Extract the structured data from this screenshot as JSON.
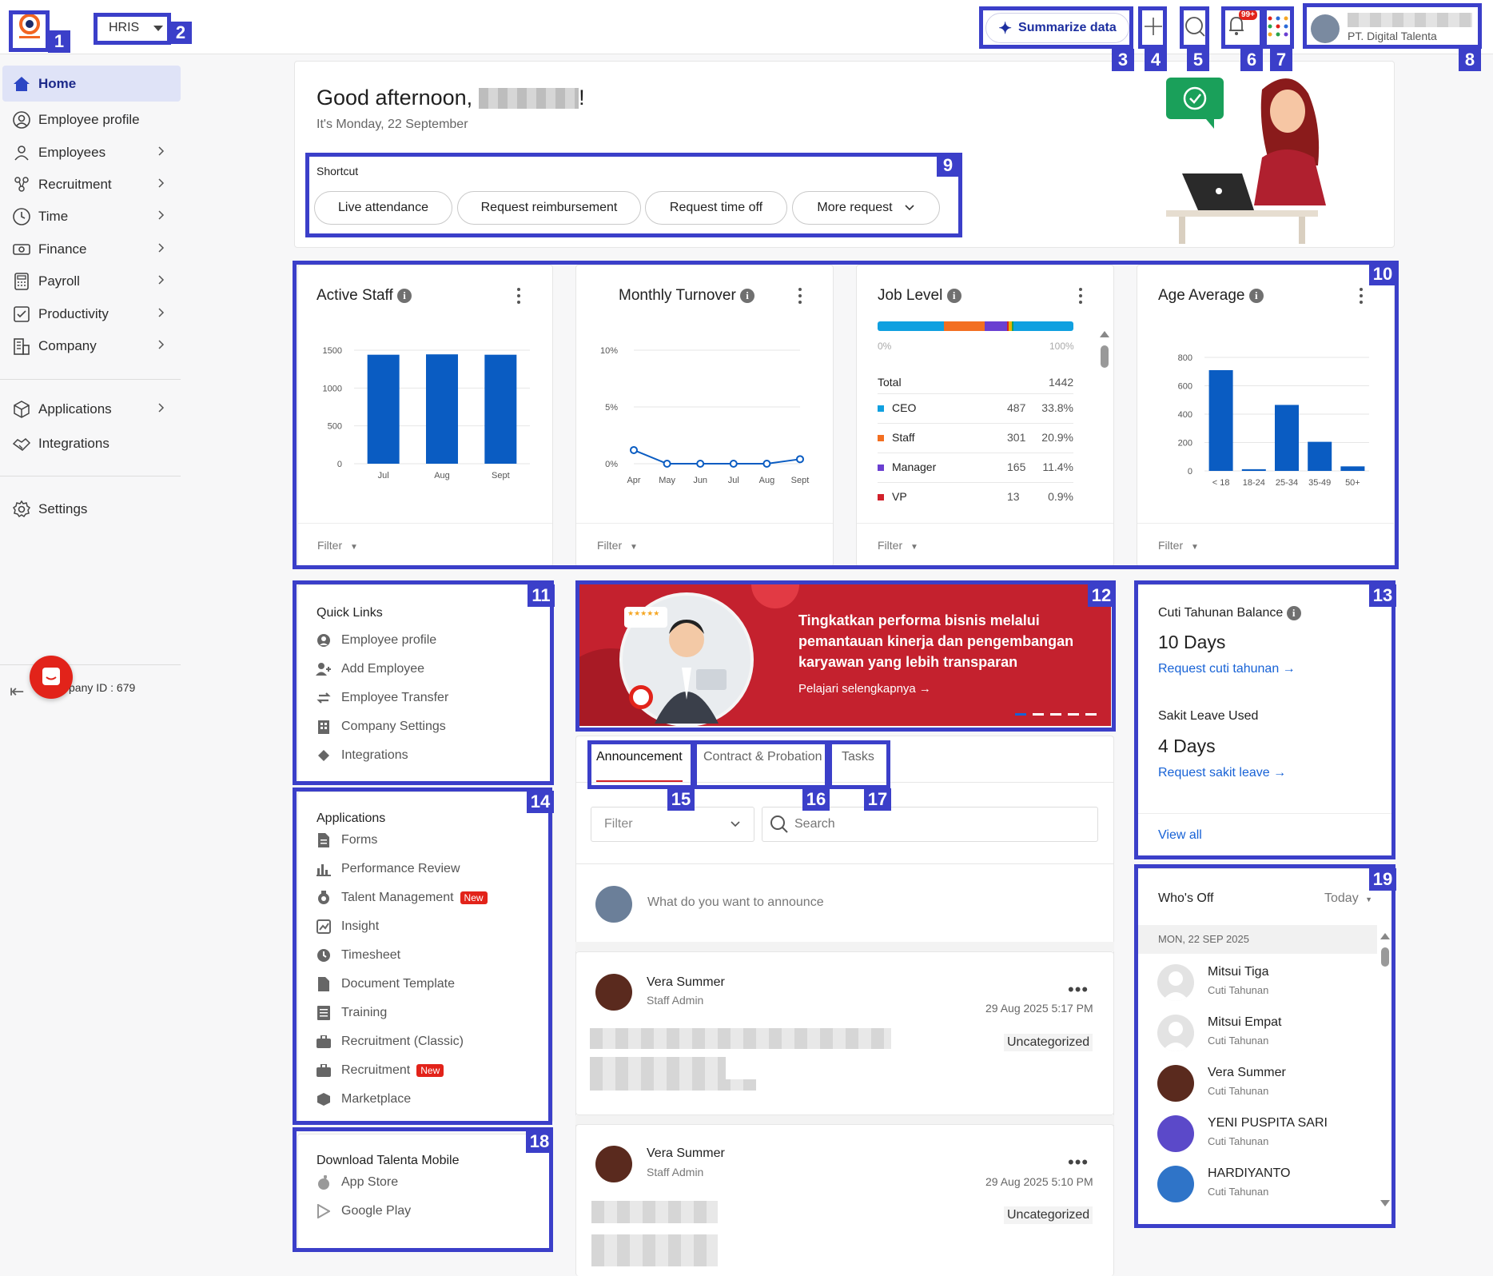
{
  "topbar": {
    "module": "HRIS",
    "summarize_label": "Summarize data",
    "notification_badge": "99+",
    "company_name": "PT. Digital Talenta"
  },
  "sidebar": {
    "items": [
      {
        "label": "Home",
        "icon": "home-icon",
        "active": true
      },
      {
        "label": "Employee profile",
        "icon": "user-circle-icon"
      },
      {
        "label": "Employees",
        "icon": "person-icon"
      },
      {
        "label": "Recruitment",
        "icon": "people-network-icon"
      },
      {
        "label": "Time",
        "icon": "clock-icon"
      },
      {
        "label": "Finance",
        "icon": "money-icon"
      },
      {
        "label": "Payroll",
        "icon": "calculator-icon"
      },
      {
        "label": "Productivity",
        "icon": "checklist-icon"
      },
      {
        "label": "Company",
        "icon": "building-icon"
      },
      {
        "label": "Applications",
        "icon": "cube-icon"
      },
      {
        "label": "Integrations",
        "icon": "handshake-icon"
      },
      {
        "label": "Settings",
        "icon": "gear-icon"
      }
    ],
    "company_id": "pany ID : 679"
  },
  "greeting": {
    "title": "Good afternoon,",
    "exclaim": "!",
    "date": "It's Monday, 22 September",
    "shortcut_title": "Shortcut",
    "shortcuts": [
      "Live attendance",
      "Request reimbursement",
      "Request time off",
      "More request"
    ]
  },
  "widgets": {
    "active_staff": {
      "title": "Active Staff",
      "filter": "Filter"
    },
    "monthly_turnover": {
      "title": "Monthly Turnover",
      "filter": "Filter"
    },
    "job_level": {
      "title": "Job Level",
      "filter": "Filter",
      "scale_min": "0%",
      "scale_max": "100%",
      "total_label": "Total",
      "total_value": "1442",
      "rows": [
        {
          "name": "CEO",
          "count": "487",
          "pct": "33.8%",
          "color": "#10a0e0"
        },
        {
          "name": "Staff",
          "count": "301",
          "pct": "20.9%",
          "color": "#f36f21"
        },
        {
          "name": "Manager",
          "count": "165",
          "pct": "11.4%",
          "color": "#6a3fd1"
        },
        {
          "name": "VP",
          "count": "13",
          "pct": "0.9%",
          "color": "#d1202a"
        }
      ]
    },
    "age_average": {
      "title": "Age Average",
      "filter": "Filter"
    }
  },
  "chart_data": [
    {
      "type": "bar",
      "title": "Active Staff",
      "categories": [
        "Jul",
        "Aug",
        "Sept"
      ],
      "values": [
        1440,
        1445,
        1440
      ],
      "ylim": [
        0,
        1500
      ],
      "yticks": [
        "1500",
        "1000",
        "500",
        "0"
      ]
    },
    {
      "type": "line",
      "title": "Monthly Turnover",
      "categories": [
        "Apr",
        "May",
        "Jun",
        "Jul",
        "Aug",
        "Sept"
      ],
      "values": [
        1.2,
        0,
        0,
        0,
        0,
        0.4
      ],
      "ylim": [
        0,
        10
      ],
      "yticks": [
        "10%",
        "5%",
        "0%"
      ]
    },
    {
      "type": "bar",
      "title": "Age Average",
      "categories": [
        "< 18",
        "18-24",
        "25-34",
        "35-49",
        "50+"
      ],
      "values": [
        710,
        12,
        465,
        205,
        32
      ],
      "ylim": [
        0,
        800
      ],
      "yticks": [
        "800",
        "600",
        "400",
        "200",
        "0"
      ]
    }
  ],
  "quick_links": {
    "title": "Quick Links",
    "items": [
      {
        "label": "Employee profile",
        "icon": "user-circle-icon"
      },
      {
        "label": "Add Employee",
        "icon": "add-person-icon"
      },
      {
        "label": "Employee Transfer",
        "icon": "transfer-icon"
      },
      {
        "label": "Company Settings",
        "icon": "building-icon"
      },
      {
        "label": "Integrations",
        "icon": "puzzle-icon"
      }
    ]
  },
  "applications": {
    "title": "Applications",
    "new_badge": "New",
    "items": [
      {
        "label": "Forms",
        "icon": "form-icon"
      },
      {
        "label": "Performance Review",
        "icon": "bar-chart-icon"
      },
      {
        "label": "Talent Management",
        "icon": "badge-icon",
        "new": true
      },
      {
        "label": "Insight",
        "icon": "insight-icon"
      },
      {
        "label": "Timesheet",
        "icon": "clock-icon"
      },
      {
        "label": "Document Template",
        "icon": "document-icon"
      },
      {
        "label": "Training",
        "icon": "list-icon"
      },
      {
        "label": "Recruitment (Classic)",
        "icon": "briefcase-icon"
      },
      {
        "label": "Recruitment",
        "icon": "briefcase-icon",
        "new": true
      },
      {
        "label": "Marketplace",
        "icon": "cube-icon"
      }
    ]
  },
  "download": {
    "title": "Download Talenta Mobile",
    "app_store": "App Store",
    "google_play": "Google Play"
  },
  "banner": {
    "headline": "Tingkatkan performa bisnis melalui pemantauan kinerja dan pengembangan karyawan yang lebih transparan",
    "cta": "Pelajari selengkapnya →"
  },
  "tabs": [
    "Announcement",
    "Contract & Probation",
    "Tasks"
  ],
  "announce": {
    "filter_placeholder": "Filter",
    "search_placeholder": "Search",
    "compose_placeholder": "What do you want to announce",
    "posts": [
      {
        "author": "Vera Summer",
        "role": "Staff Admin",
        "time": "29 Aug 2025 5:17 PM",
        "category": "Uncategorized"
      },
      {
        "author": "Vera Summer",
        "role": "Staff Admin",
        "time": "29 Aug 2025 5:10 PM",
        "category": "Uncategorized"
      }
    ]
  },
  "leave": {
    "annual_title": "Cuti Tahunan Balance",
    "annual_value": "10 Days",
    "annual_link": "Request cuti tahunan →",
    "sick_title": "Sakit Leave Used",
    "sick_value": "4 Days",
    "sick_link": "Request sakit leave →",
    "view_all": "View all"
  },
  "whos_off": {
    "title": "Who's Off",
    "period": "Today",
    "date": "MON, 22 SEP 2025",
    "people": [
      {
        "name": "Mitsui Tiga",
        "type": "Cuti Tahunan"
      },
      {
        "name": "Mitsui Empat",
        "type": "Cuti Tahunan"
      },
      {
        "name": "Vera Summer",
        "type": "Cuti Tahunan"
      },
      {
        "name": "YENI PUSPITA SARI",
        "type": "Cuti Tahunan"
      },
      {
        "name": "HARDIYANTO",
        "type": "Cuti Tahunan"
      }
    ]
  },
  "annotation_numbers": [
    "1",
    "2",
    "3",
    "4",
    "5",
    "6",
    "7",
    "8",
    "9",
    "10",
    "11",
    "12",
    "13",
    "14",
    "15",
    "16",
    "17",
    "18",
    "19"
  ]
}
